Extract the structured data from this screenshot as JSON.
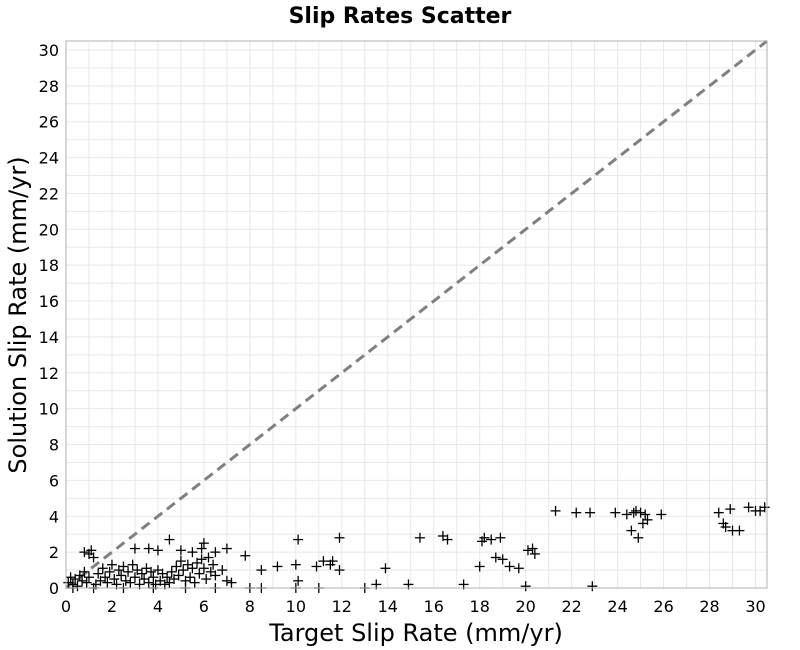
{
  "chart_data": {
    "type": "scatter",
    "title": "Slip Rates Scatter",
    "xlabel": "Target Slip Rate (mm/yr)",
    "ylabel": "Solution Slip Rate (mm/yr)",
    "xlim": [
      0,
      30.5
    ],
    "ylim": [
      0,
      30.5
    ],
    "xticks": [
      0,
      2,
      4,
      6,
      8,
      10,
      12,
      14,
      16,
      18,
      20,
      22,
      24,
      26,
      28,
      30
    ],
    "yticks": [
      0,
      2,
      4,
      6,
      8,
      10,
      12,
      14,
      16,
      18,
      20,
      22,
      24,
      26,
      28,
      30
    ],
    "grid": true,
    "marker": "plus",
    "marker_color": "#000000",
    "reference_line": {
      "style": "dashed",
      "color": "#808080",
      "from": [
        0,
        0
      ],
      "to": [
        30.5,
        30.5
      ]
    },
    "points": [
      [
        0.1,
        0.3
      ],
      [
        0.2,
        0.6
      ],
      [
        0.3,
        0.2
      ],
      [
        0.4,
        0.5
      ],
      [
        0.5,
        0.1
      ],
      [
        0.6,
        0.7
      ],
      [
        0.7,
        0.4
      ],
      [
        0.8,
        0.9
      ],
      [
        0.9,
        0.3
      ],
      [
        1.0,
        0.6
      ],
      [
        0.8,
        2.0
      ],
      [
        1.0,
        1.9
      ],
      [
        1.1,
        2.1
      ],
      [
        1.2,
        1.7
      ],
      [
        1.3,
        0.2
      ],
      [
        1.4,
        0.8
      ],
      [
        1.5,
        0.4
      ],
      [
        1.6,
        1.1
      ],
      [
        1.7,
        0.6
      ],
      [
        1.8,
        0.3
      ],
      [
        1.9,
        0.9
      ],
      [
        2.0,
        1.3
      ],
      [
        2.1,
        0.5
      ],
      [
        2.2,
        0.2
      ],
      [
        2.3,
        1.0
      ],
      [
        2.4,
        0.7
      ],
      [
        2.5,
        1.2
      ],
      [
        2.6,
        0.4
      ],
      [
        2.7,
        0.9
      ],
      [
        2.8,
        0.3
      ],
      [
        2.9,
        1.3
      ],
      [
        3.0,
        0.6
      ],
      [
        3.1,
        1.0
      ],
      [
        3.2,
        0.2
      ],
      [
        3.3,
        0.8
      ],
      [
        3.4,
        0.5
      ],
      [
        3.5,
        1.1
      ],
      [
        3.6,
        0.3
      ],
      [
        3.7,
        0.9
      ],
      [
        3.8,
        0.6
      ],
      [
        3.9,
        0.2
      ],
      [
        4.0,
        1.0
      ],
      [
        4.1,
        0.4
      ],
      [
        4.2,
        0.8
      ],
      [
        4.3,
        0.2
      ],
      [
        4.4,
        0.6
      ],
      [
        4.5,
        0.3
      ],
      [
        4.6,
        0.9
      ],
      [
        4.7,
        0.5
      ],
      [
        4.8,
        1.2
      ],
      [
        4.9,
        0.7
      ],
      [
        5.0,
        1.5
      ],
      [
        5.1,
        1.0
      ],
      [
        5.2,
        0.4
      ],
      [
        5.3,
        1.3
      ],
      [
        5.4,
        0.6
      ],
      [
        5.5,
        1.1
      ],
      [
        5.6,
        0.3
      ],
      [
        5.7,
        1.4
      ],
      [
        5.8,
        0.8
      ],
      [
        5.9,
        1.6
      ],
      [
        6.0,
        1.1
      ],
      [
        6.1,
        0.5
      ],
      [
        6.2,
        1.7
      ],
      [
        6.3,
        0.9
      ],
      [
        6.4,
        1.3
      ],
      [
        6.5,
        0.7
      ],
      [
        6.8,
        1.0
      ],
      [
        7.0,
        0.4
      ],
      [
        7.2,
        0.3
      ],
      [
        3.0,
        2.2
      ],
      [
        3.6,
        2.2
      ],
      [
        4.0,
        2.1
      ],
      [
        4.5,
        2.7
      ],
      [
        5.0,
        2.1
      ],
      [
        5.5,
        2.0
      ],
      [
        5.9,
        2.2
      ],
      [
        6.0,
        2.5
      ],
      [
        6.5,
        2.0
      ],
      [
        7.0,
        2.2
      ],
      [
        0.3,
        0.0
      ],
      [
        1.2,
        0.0
      ],
      [
        2.5,
        0.0
      ],
      [
        3.8,
        0.0
      ],
      [
        5.2,
        0.0
      ],
      [
        6.5,
        0.0
      ],
      [
        8.0,
        0.0
      ],
      [
        8.5,
        0.0
      ],
      [
        10.0,
        0.0
      ],
      [
        11.0,
        0.0
      ],
      [
        7.8,
        1.8
      ],
      [
        8.5,
        1.0
      ],
      [
        9.2,
        1.2
      ],
      [
        10.0,
        1.3
      ],
      [
        10.1,
        2.7
      ],
      [
        10.1,
        0.4
      ],
      [
        10.9,
        1.2
      ],
      [
        11.2,
        1.5
      ],
      [
        11.5,
        1.3
      ],
      [
        11.6,
        1.5
      ],
      [
        11.9,
        1.0
      ],
      [
        11.9,
        2.8
      ],
      [
        13.0,
        0.0
      ],
      [
        13.5,
        0.2
      ],
      [
        13.9,
        1.1
      ],
      [
        14.9,
        0.2
      ],
      [
        15.4,
        2.8
      ],
      [
        16.4,
        2.9
      ],
      [
        16.6,
        2.7
      ],
      [
        17.3,
        0.2
      ],
      [
        18.0,
        1.2
      ],
      [
        18.1,
        2.6
      ],
      [
        18.2,
        2.8
      ],
      [
        18.5,
        2.7
      ],
      [
        18.7,
        1.7
      ],
      [
        18.9,
        2.8
      ],
      [
        19.0,
        1.6
      ],
      [
        19.3,
        1.2
      ],
      [
        19.7,
        1.1
      ],
      [
        20.0,
        0.1
      ],
      [
        20.1,
        2.1
      ],
      [
        20.3,
        2.2
      ],
      [
        20.4,
        1.9
      ],
      [
        21.3,
        4.3
      ],
      [
        22.2,
        4.2
      ],
      [
        22.8,
        4.2
      ],
      [
        22.9,
        0.1
      ],
      [
        23.9,
        4.2
      ],
      [
        24.4,
        4.1
      ],
      [
        24.6,
        3.2
      ],
      [
        24.7,
        4.2
      ],
      [
        24.8,
        4.3
      ],
      [
        24.9,
        2.8
      ],
      [
        25.0,
        4.2
      ],
      [
        25.1,
        3.6
      ],
      [
        25.2,
        4.1
      ],
      [
        25.3,
        3.8
      ],
      [
        25.9,
        4.1
      ],
      [
        28.4,
        4.2
      ],
      [
        28.6,
        3.6
      ],
      [
        28.7,
        3.4
      ],
      [
        28.9,
        4.4
      ],
      [
        29.0,
        3.2
      ],
      [
        29.3,
        3.2
      ],
      [
        29.7,
        4.5
      ],
      [
        30.0,
        4.3
      ],
      [
        30.2,
        4.3
      ],
      [
        30.4,
        4.5
      ]
    ]
  }
}
